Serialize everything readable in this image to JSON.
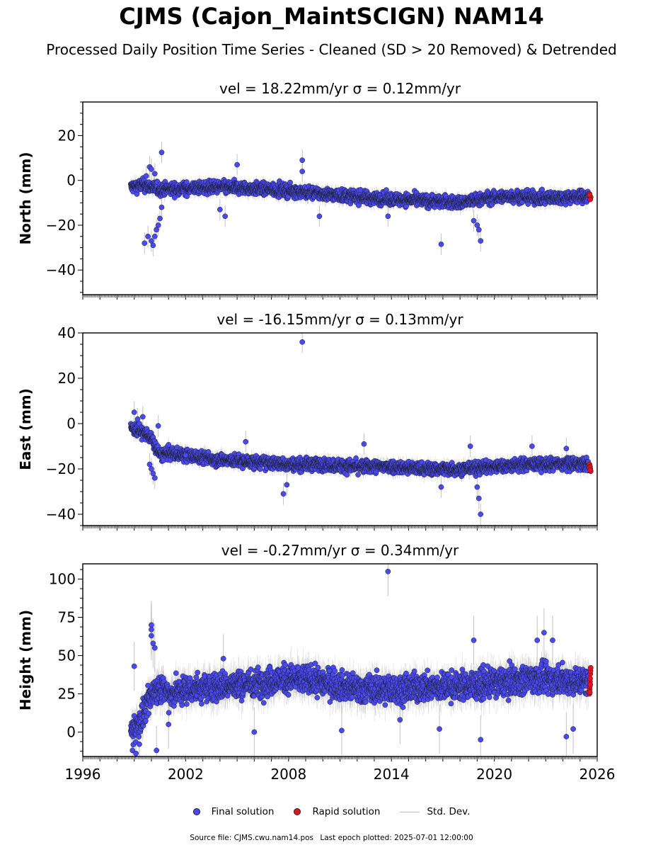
{
  "title": "CJMS (Cajon_MaintSCIGN) NAM14",
  "subtitle": "Processed Daily Position Time Series - Cleaned (SD > 20 Removed) & Detrended",
  "legend": {
    "final_label": "Final solution",
    "rapid_label": "Rapid solution",
    "std_label": "Std. Dev."
  },
  "footer": {
    "source_file": "Source file: CJMS.cwu.nam14.pos",
    "last_epoch": "Last epoch plotted: 2025-07-01 12:00:00"
  },
  "colors": {
    "final": "#4a4af5",
    "rapid": "#e8101a",
    "std_dev": "#9a9a9a"
  },
  "chart_data": [
    {
      "type": "scatter",
      "panel": "north",
      "title": "vel = 18.22mm/yr   σ = 0.12mm/yr",
      "xlabel": "",
      "ylabel": "North (mm)",
      "xlim": [
        1996,
        2026
      ],
      "ylim": [
        -51,
        35
      ],
      "yticks": [
        -40,
        -20,
        0,
        20
      ],
      "data_start": 1998.8,
      "data_end": 2025.5,
      "series": [
        {
          "name": "Final solution",
          "trend": [
            [
              1998.8,
              -3
            ],
            [
              1999.5,
              -2
            ],
            [
              2000.5,
              -4
            ],
            [
              2004,
              -3
            ],
            [
              2007,
              -4
            ],
            [
              2010,
              -6
            ],
            [
              2013,
              -8
            ],
            [
              2016,
              -9
            ],
            [
              2018,
              -10
            ],
            [
              2019.5,
              -8
            ],
            [
              2021,
              -7
            ],
            [
              2023,
              -8
            ],
            [
              2025.5,
              -7
            ]
          ],
          "band": 3,
          "outliers": [
            [
              1999.6,
              -28
            ],
            [
              1999.8,
              -25
            ],
            [
              2000.0,
              -27
            ],
            [
              2000.1,
              -29
            ],
            [
              2000.2,
              -25
            ],
            [
              2000.3,
              -22
            ],
            [
              2000.4,
              -20
            ],
            [
              2000.5,
              -17
            ],
            [
              2000.6,
              -12
            ],
            [
              1999.9,
              6
            ],
            [
              2000.0,
              5
            ],
            [
              2000.2,
              3
            ],
            [
              1999.7,
              2
            ],
            [
              2000.6,
              12.5
            ],
            [
              2004.0,
              -13
            ],
            [
              2004.3,
              -16
            ],
            [
              2005.0,
              7
            ],
            [
              2008.8,
              9
            ],
            [
              2008.8,
              4
            ],
            [
              2009.8,
              -16
            ],
            [
              2013.8,
              -16
            ],
            [
              2016.9,
              -28.5
            ],
            [
              2018.8,
              -18
            ],
            [
              2019.0,
              -20
            ],
            [
              2019.2,
              -27
            ],
            [
              2019.1,
              -22
            ]
          ]
        },
        {
          "name": "Rapid solution",
          "points": [
            [
              2025.55,
              -6
            ],
            [
              2025.58,
              -7
            ],
            [
              2025.6,
              -8
            ],
            [
              2025.62,
              -7.5
            ],
            [
              2025.56,
              -6.5
            ],
            [
              2025.59,
              -8.5
            ]
          ]
        }
      ]
    },
    {
      "type": "scatter",
      "panel": "east",
      "title": "vel = -16.15mm/yr   σ = 0.13mm/yr",
      "xlabel": "",
      "ylabel": "East (mm)",
      "xlim": [
        1996,
        2026
      ],
      "ylim": [
        -45,
        40
      ],
      "yticks": [
        -40,
        -20,
        0,
        20,
        40
      ],
      "data_start": 1998.8,
      "data_end": 2025.5,
      "series": [
        {
          "name": "Final solution",
          "trend": [
            [
              1998.8,
              -2
            ],
            [
              1999.3,
              -3
            ],
            [
              1999.8,
              -5
            ],
            [
              2000.1,
              -8
            ],
            [
              2000.5,
              -14
            ],
            [
              2001,
              -13
            ],
            [
              2002,
              -14
            ],
            [
              2004,
              -16
            ],
            [
              2006,
              -17
            ],
            [
              2008,
              -18
            ],
            [
              2010,
              -18
            ],
            [
              2012,
              -19
            ],
            [
              2014,
              -19
            ],
            [
              2016,
              -20
            ],
            [
              2018,
              -20
            ],
            [
              2020,
              -19
            ],
            [
              2022,
              -18
            ],
            [
              2024,
              -18
            ],
            [
              2025.5,
              -18
            ]
          ],
          "band": 3,
          "outliers": [
            [
              1999.0,
              5
            ],
            [
              1999.2,
              2
            ],
            [
              1999.5,
              3
            ],
            [
              1999.9,
              -18
            ],
            [
              2000.1,
              -22
            ],
            [
              2000.2,
              -24
            ],
            [
              2000.0,
              -20
            ],
            [
              2000.4,
              -1
            ],
            [
              2002.0,
              -14
            ],
            [
              2005.5,
              -8
            ],
            [
              2007.7,
              -31
            ],
            [
              2007.9,
              -27
            ],
            [
              2008.8,
              36
            ],
            [
              2012.4,
              -9
            ],
            [
              2016.9,
              -28
            ],
            [
              2018.6,
              -10
            ],
            [
              2019.1,
              -33
            ],
            [
              2019.2,
              -40
            ],
            [
              2019.0,
              -28
            ],
            [
              2022.2,
              -10
            ],
            [
              2024.2,
              -11
            ]
          ]
        },
        {
          "name": "Rapid solution",
          "points": [
            [
              2025.55,
              -18
            ],
            [
              2025.58,
              -19
            ],
            [
              2025.6,
              -20
            ],
            [
              2025.62,
              -21
            ],
            [
              2025.56,
              -19.5
            ],
            [
              2025.59,
              -20.5
            ]
          ]
        }
      ]
    },
    {
      "type": "scatter",
      "panel": "height",
      "title": "vel = -0.27mm/yr   σ = 0.34mm/yr",
      "xlabel": "",
      "ylabel": "Height (mm)",
      "xlim": [
        1996,
        2026
      ],
      "ylim": [
        -16,
        110
      ],
      "yticks": [
        0,
        25,
        50,
        75,
        100
      ],
      "xticks": [
        1996,
        2002,
        2008,
        2014,
        2020,
        2026
      ],
      "data_start": 1998.8,
      "data_end": 2025.5,
      "series": [
        {
          "name": "Final solution",
          "trend": [
            [
              1998.8,
              0
            ],
            [
              1999.2,
              5
            ],
            [
              1999.7,
              15
            ],
            [
              2000.0,
              25
            ],
            [
              2000.5,
              30
            ],
            [
              2001,
              25
            ],
            [
              2002,
              28
            ],
            [
              2004,
              30
            ],
            [
              2006,
              32
            ],
            [
              2008,
              35
            ],
            [
              2010,
              33
            ],
            [
              2012,
              28
            ],
            [
              2014,
              28
            ],
            [
              2016,
              29
            ],
            [
              2018,
              30
            ],
            [
              2020,
              32
            ],
            [
              2022,
              35
            ],
            [
              2024,
              34
            ],
            [
              2025.5,
              33
            ]
          ],
          "band": 10,
          "outliers": [
            [
              1999.0,
              43
            ],
            [
              1998.9,
              -12
            ],
            [
              1999.1,
              -14
            ],
            [
              1999.3,
              -8
            ],
            [
              2000.0,
              70
            ],
            [
              2000.0,
              67
            ],
            [
              2000.0,
              63
            ],
            [
              2000.1,
              58
            ],
            [
              2000.2,
              55
            ],
            [
              2000.3,
              -12
            ],
            [
              2001.0,
              5
            ],
            [
              2004.2,
              48
            ],
            [
              2006.0,
              0
            ],
            [
              2011.1,
              1
            ],
            [
              2013.8,
              105
            ],
            [
              2014.5,
              8
            ],
            [
              2016.8,
              2
            ],
            [
              2018.8,
              60
            ],
            [
              2019.2,
              -5
            ],
            [
              2022.5,
              60
            ],
            [
              2022.9,
              65
            ],
            [
              2023.4,
              60
            ],
            [
              2024.2,
              -3
            ],
            [
              2024.6,
              2
            ]
          ]
        },
        {
          "name": "Rapid solution",
          "points": [
            [
              2025.55,
              25
            ],
            [
              2025.56,
              28
            ],
            [
              2025.57,
              30
            ],
            [
              2025.58,
              33
            ],
            [
              2025.59,
              35
            ],
            [
              2025.6,
              38
            ],
            [
              2025.61,
              40
            ],
            [
              2025.62,
              42
            ],
            [
              2025.57,
              26
            ],
            [
              2025.6,
              31
            ]
          ]
        }
      ]
    }
  ]
}
